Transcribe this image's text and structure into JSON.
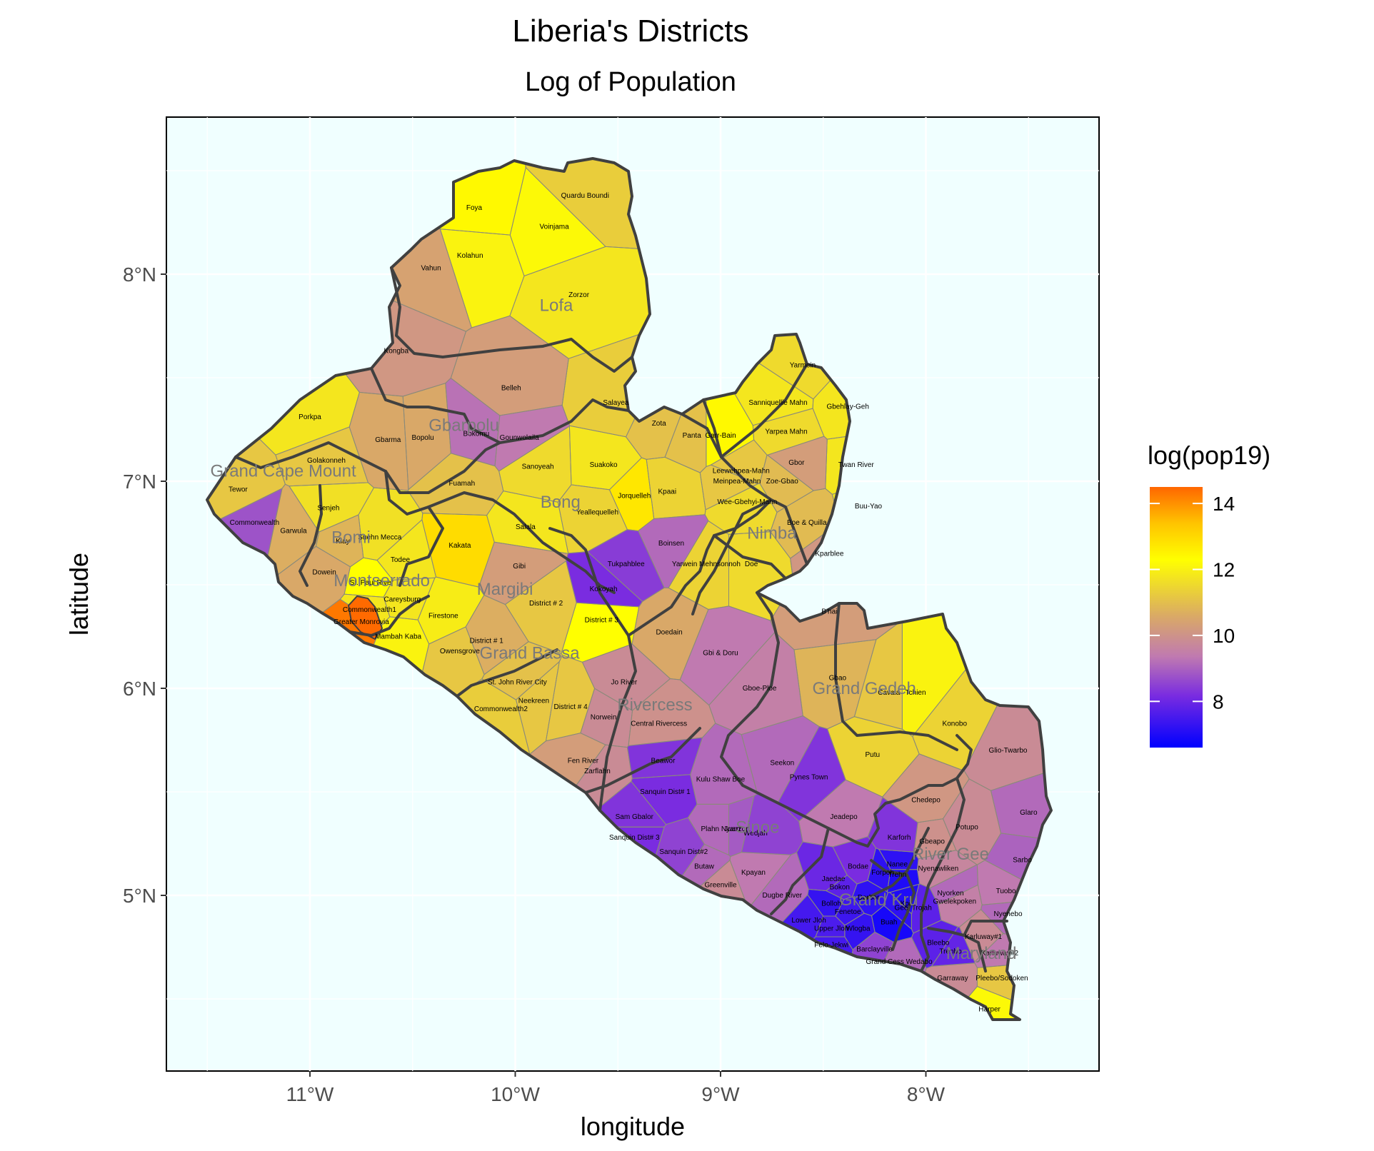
{
  "title": "Liberia's Districts",
  "subtitle": "Log of Population",
  "x_axis": {
    "label": "longitude",
    "ticks": [
      "11°W",
      "10°W",
      "9°W",
      "8°W"
    ],
    "tick_values": [
      -11,
      -10,
      -9,
      -8
    ]
  },
  "y_axis": {
    "label": "latitude",
    "ticks": [
      "8°N",
      "7°N",
      "6°N",
      "5°N"
    ],
    "tick_values": [
      8,
      7,
      6,
      5
    ]
  },
  "legend": {
    "title": "log(pop19)",
    "ticks": [
      "14",
      "12",
      "10",
      "8"
    ],
    "tick_values": [
      14,
      12,
      10,
      8
    ],
    "range": [
      6.6,
      14.5
    ],
    "colors": {
      "low": "#0000ff",
      "mid_low": "#a040d0",
      "mid": "#d9a868",
      "mid_high": "#ffff00",
      "high": "#ff6600"
    }
  },
  "colors": {
    "panel_background": "#f0ffff",
    "grid": "#ffffff",
    "county_border": "#404040",
    "district_border": "#7a7a7a",
    "greater_monrovia": "#ff6a00"
  },
  "chart_data": {
    "type": "choropleth",
    "region": "Liberia",
    "xlim": [
      -11.7,
      -7.2
    ],
    "ylim": [
      4.25,
      8.75
    ],
    "grid": true,
    "legend_position": "right",
    "counties": [
      {
        "name": "Lofa",
        "lon": -9.8,
        "lat": 7.85
      },
      {
        "name": "Gbarpolu",
        "lon": -10.25,
        "lat": 7.27
      },
      {
        "name": "Grand Cape Mount",
        "lon": -11.13,
        "lat": 7.05
      },
      {
        "name": "Bong",
        "lon": -9.78,
        "lat": 6.9
      },
      {
        "name": "Bomi",
        "lon": -10.8,
        "lat": 6.73
      },
      {
        "name": "Montserrado",
        "lon": -10.65,
        "lat": 6.52
      },
      {
        "name": "Margibi",
        "lon": -10.05,
        "lat": 6.48
      },
      {
        "name": "Nimba",
        "lon": -8.75,
        "lat": 6.75
      },
      {
        "name": "Grand Bassa",
        "lon": -9.93,
        "lat": 6.17
      },
      {
        "name": "Rivercess",
        "lon": -9.32,
        "lat": 5.92
      },
      {
        "name": "Grand Gedeh",
        "lon": -8.3,
        "lat": 6.0
      },
      {
        "name": "Sinoe",
        "lon": -8.82,
        "lat": 5.33
      },
      {
        "name": "River Gee",
        "lon": -7.88,
        "lat": 5.2
      },
      {
        "name": "Grand Kru",
        "lon": -8.23,
        "lat": 4.98
      },
      {
        "name": "Maryland",
        "lon": -7.73,
        "lat": 4.72
      }
    ],
    "districts": [
      {
        "name": "Foya",
        "lon": -10.2,
        "lat": 8.32,
        "value": 11.5
      },
      {
        "name": "Quardu Boundi",
        "lon": -9.66,
        "lat": 8.38,
        "value": 10.6
      },
      {
        "name": "Voinjama",
        "lon": -9.81,
        "lat": 8.23,
        "value": 11.3
      },
      {
        "name": "Kolahun",
        "lon": -10.22,
        "lat": 8.09,
        "value": 11.2
      },
      {
        "name": "Vahun",
        "lon": -10.41,
        "lat": 8.03,
        "value": 9.9
      },
      {
        "name": "Zorzor",
        "lon": -9.69,
        "lat": 7.9,
        "value": 11.0
      },
      {
        "name": "Kongba",
        "lon": -10.58,
        "lat": 7.63,
        "value": 9.7
      },
      {
        "name": "Belleh",
        "lon": -10.02,
        "lat": 7.45,
        "value": 9.8
      },
      {
        "name": "Salayea",
        "lon": -9.51,
        "lat": 7.38,
        "value": 10.6
      },
      {
        "name": "Porkpa",
        "lon": -11.0,
        "lat": 7.31,
        "value": 11.0
      },
      {
        "name": "Golakonneh",
        "lon": -10.92,
        "lat": 7.1,
        "value": 10.5
      },
      {
        "name": "Gbarma",
        "lon": -10.62,
        "lat": 7.2,
        "value": 10.0
      },
      {
        "name": "Bopolu",
        "lon": -10.45,
        "lat": 7.21,
        "value": 10.0
      },
      {
        "name": "Bokomu",
        "lon": -10.19,
        "lat": 7.23,
        "value": 9.1
      },
      {
        "name": "Gounwolaila",
        "lon": -9.98,
        "lat": 7.21,
        "value": 9.2
      },
      {
        "name": "Zota",
        "lon": -9.3,
        "lat": 7.28,
        "value": 10.4
      },
      {
        "name": "Panta",
        "lon": -9.14,
        "lat": 7.22,
        "value": 10.4
      },
      {
        "name": "Tewor",
        "lon": -11.35,
        "lat": 6.96,
        "value": 10.5
      },
      {
        "name": "Fuamah",
        "lon": -10.26,
        "lat": 6.99,
        "value": 10.4
      },
      {
        "name": "Sanoyeah",
        "lon": -9.89,
        "lat": 7.07,
        "value": 10.8
      },
      {
        "name": "Suakoko",
        "lon": -9.57,
        "lat": 7.08,
        "value": 11.0
      },
      {
        "name": "Jorquelleh",
        "lon": -9.42,
        "lat": 6.93,
        "value": 11.8
      },
      {
        "name": "Kpaai",
        "lon": -9.26,
        "lat": 6.95,
        "value": 10.7
      },
      {
        "name": "Senjeh",
        "lon": -10.91,
        "lat": 6.87,
        "value": 10.9
      },
      {
        "name": "Commonwealth",
        "lon": -11.27,
        "lat": 6.8,
        "value": 8.7
      },
      {
        "name": "Garwula",
        "lon": -11.08,
        "lat": 6.76,
        "value": 10.1
      },
      {
        "name": "Suehn Mecca",
        "lon": -10.66,
        "lat": 6.73,
        "value": 10.9
      },
      {
        "name": "Klay",
        "lon": -10.84,
        "lat": 6.71,
        "value": 10.2
      },
      {
        "name": "Yeallequelleh",
        "lon": -9.6,
        "lat": 6.85,
        "value": 10.7
      },
      {
        "name": "Salala",
        "lon": -9.95,
        "lat": 6.78,
        "value": 11.0
      },
      {
        "name": "Kakata",
        "lon": -10.27,
        "lat": 6.69,
        "value": 12.0
      },
      {
        "name": "Boinsen",
        "lon": -9.24,
        "lat": 6.7,
        "value": 9.0
      },
      {
        "name": "Todee",
        "lon": -10.56,
        "lat": 6.62,
        "value": 11.0
      },
      {
        "name": "Gibi",
        "lon": -9.98,
        "lat": 6.59,
        "value": 9.8
      },
      {
        "name": "Tukpahblee",
        "lon": -9.46,
        "lat": 6.6,
        "value": 8.4
      },
      {
        "name": "Dowein",
        "lon": -10.93,
        "lat": 6.56,
        "value": 10.0
      },
      {
        "name": "St. Paul River",
        "lon": -10.7,
        "lat": 6.51,
        "value": 11.4
      },
      {
        "name": "Careysburg",
        "lon": -10.55,
        "lat": 6.43,
        "value": 11.0
      },
      {
        "name": "Commonwealth1",
        "lon": -10.71,
        "lat": 6.38,
        "value": 11.0
      },
      {
        "name": "Kokoyah",
        "lon": -9.57,
        "lat": 6.48,
        "value": 8.2
      },
      {
        "name": "District # 2",
        "lon": -9.85,
        "lat": 6.41,
        "value": 10.5
      },
      {
        "name": "Firestone",
        "lon": -10.35,
        "lat": 6.35,
        "value": 11.1
      },
      {
        "name": "Greater Monrovia",
        "lon": -10.75,
        "lat": 6.32,
        "value": 14.1
      },
      {
        "name": "Mambah Kaba",
        "lon": -10.57,
        "lat": 6.25,
        "value": 11.2
      },
      {
        "name": "District # 3",
        "lon": -9.58,
        "lat": 6.33,
        "value": 11.4
      },
      {
        "name": "Doedain",
        "lon": -9.25,
        "lat": 6.27,
        "value": 10.0
      },
      {
        "name": "District # 1",
        "lon": -10.14,
        "lat": 6.23,
        "value": 10.1
      },
      {
        "name": "Owensgrove",
        "lon": -10.27,
        "lat": 6.18,
        "value": 10.5
      },
      {
        "name": "St. John River City",
        "lon": -9.99,
        "lat": 6.03,
        "value": 10.4
      },
      {
        "name": "Jo River",
        "lon": -9.47,
        "lat": 6.03,
        "value": 9.5
      },
      {
        "name": "Neekreen",
        "lon": -9.91,
        "lat": 5.94,
        "value": 10.5
      },
      {
        "name": "Commonwealth2",
        "lon": -10.07,
        "lat": 5.9,
        "value": 10.6
      },
      {
        "name": "District # 4",
        "lon": -9.73,
        "lat": 5.91,
        "value": 10.5
      },
      {
        "name": "Norwein",
        "lon": -9.57,
        "lat": 5.86,
        "value": 9.5
      },
      {
        "name": "Central Rivercess",
        "lon": -9.3,
        "lat": 5.83,
        "value": 9.6
      },
      {
        "name": "Fen River",
        "lon": -9.67,
        "lat": 5.65,
        "value": 9.8
      },
      {
        "name": "Zarflahn",
        "lon": -9.6,
        "lat": 5.6,
        "value": 9.5
      },
      {
        "name": "Beawor",
        "lon": -9.28,
        "lat": 5.65,
        "value": 8.3
      },
      {
        "name": "Sanquin Dist# 1",
        "lon": -9.27,
        "lat": 5.5,
        "value": 8.2
      },
      {
        "name": "Sam Gbalor",
        "lon": -9.42,
        "lat": 5.38,
        "value": 8.3
      },
      {
        "name": "Sanquin Dist# 3",
        "lon": -9.42,
        "lat": 5.28,
        "value": 8.2
      },
      {
        "name": "Sanquin Dist#2",
        "lon": -9.18,
        "lat": 5.21,
        "value": 8.5
      },
      {
        "name": "Butaw",
        "lon": -9.08,
        "lat": 5.14,
        "value": 9.0
      },
      {
        "name": "Greenville",
        "lon": -9.0,
        "lat": 5.05,
        "value": 9.5
      },
      {
        "name": "Kulu Shaw Boe",
        "lon": -9.0,
        "lat": 5.56,
        "value": 9.0
      },
      {
        "name": "Seekon",
        "lon": -8.7,
        "lat": 5.64,
        "value": 9.0
      },
      {
        "name": "Pynes Town",
        "lon": -8.57,
        "lat": 5.57,
        "value": 8.3
      },
      {
        "name": "Plahn Nyarn",
        "lon": -9.0,
        "lat": 5.32,
        "value": 9.0
      },
      {
        "name": "Juarzon",
        "lon": -8.92,
        "lat": 5.32,
        "value": 8.8
      },
      {
        "name": "Wedjah",
        "lon": -8.83,
        "lat": 5.3,
        "value": 8.5
      },
      {
        "name": "Jeadepo",
        "lon": -8.4,
        "lat": 5.38,
        "value": 9.2
      },
      {
        "name": "Kpayan",
        "lon": -8.84,
        "lat": 5.11,
        "value": 9.2
      },
      {
        "name": "Dugbe River",
        "lon": -8.7,
        "lat": 5.0,
        "value": 9.0
      },
      {
        "name": "Yarmein",
        "lon": -8.6,
        "lat": 7.56,
        "value": 10.8
      },
      {
        "name": "Sanniquellie Mahn",
        "lon": -8.72,
        "lat": 7.38,
        "value": 11.0
      },
      {
        "name": "Gbehlay-Geh",
        "lon": -8.38,
        "lat": 7.36,
        "value": 11.0
      },
      {
        "name": "Garr-Bain",
        "lon": -9.0,
        "lat": 7.22,
        "value": 11.5
      },
      {
        "name": "Yarpea Mahn",
        "lon": -8.68,
        "lat": 7.24,
        "value": 10.8
      },
      {
        "name": "Twan River",
        "lon": -8.34,
        "lat": 7.08,
        "value": 11.0
      },
      {
        "name": "Gbor",
        "lon": -8.63,
        "lat": 7.09,
        "value": 9.8
      },
      {
        "name": "Leewehpea-Mahn",
        "lon": -8.9,
        "lat": 7.05,
        "value": 10.5
      },
      {
        "name": "Meinpea-Mahn",
        "lon": -8.92,
        "lat": 7.0,
        "value": 10.5
      },
      {
        "name": "Zoe-Gbao",
        "lon": -8.7,
        "lat": 7.0,
        "value": 10.3
      },
      {
        "name": "Wee-Gbehyi-Mahn",
        "lon": -8.87,
        "lat": 6.9,
        "value": 10.8
      },
      {
        "name": "Buu-Yao",
        "lon": -8.28,
        "lat": 6.88,
        "value": 11.0
      },
      {
        "name": "Boe & Quilla",
        "lon": -8.58,
        "lat": 6.8,
        "value": 10.3
      },
      {
        "name": "Kparblee",
        "lon": -8.47,
        "lat": 6.65,
        "value": 9.7
      },
      {
        "name": "Yarwein Mehnsonnoh",
        "lon": -9.07,
        "lat": 6.6,
        "value": 10.7
      },
      {
        "name": "Doe",
        "lon": -8.85,
        "lat": 6.6,
        "value": 10.8
      },
      {
        "name": "B'hai",
        "lon": -8.47,
        "lat": 6.37,
        "value": 9.8
      },
      {
        "name": "Gbi & Doru",
        "lon": -9.0,
        "lat": 6.17,
        "value": 9.2
      },
      {
        "name": "Gbao",
        "lon": -8.43,
        "lat": 6.05,
        "value": 10.2
      },
      {
        "name": "Gboe-Ploe",
        "lon": -8.81,
        "lat": 6.0,
        "value": 9.3
      },
      {
        "name": "Cavala",
        "lon": -8.18,
        "lat": 5.98,
        "value": 10.5
      },
      {
        "name": "Tchien",
        "lon": -8.05,
        "lat": 5.98,
        "value": 11.2
      },
      {
        "name": "Konobo",
        "lon": -7.86,
        "lat": 5.83,
        "value": 10.7
      },
      {
        "name": "Putu",
        "lon": -8.26,
        "lat": 5.68,
        "value": 10.7
      },
      {
        "name": "Glio-Twarbo",
        "lon": -7.6,
        "lat": 5.7,
        "value": 9.5
      },
      {
        "name": "Chedepo",
        "lon": -8.0,
        "lat": 5.46,
        "value": 9.7
      },
      {
        "name": "Glaro",
        "lon": -7.5,
        "lat": 5.4,
        "value": 9.0
      },
      {
        "name": "Potupo",
        "lon": -7.8,
        "lat": 5.33,
        "value": 9.5
      },
      {
        "name": "Karforh",
        "lon": -8.13,
        "lat": 5.28,
        "value": 8.3
      },
      {
        "name": "Gbeapo",
        "lon": -7.97,
        "lat": 5.26,
        "value": 9.6
      },
      {
        "name": "Sarbo",
        "lon": -7.53,
        "lat": 5.17,
        "value": 8.9
      },
      {
        "name": "Nanee",
        "lon": -8.14,
        "lat": 5.15,
        "value": 7.2
      },
      {
        "name": "Nyenawliken",
        "lon": -7.94,
        "lat": 5.13,
        "value": 9.4
      },
      {
        "name": "Bodae",
        "lon": -8.33,
        "lat": 5.14,
        "value": 8.2
      },
      {
        "name": "Forpoh",
        "lon": -8.21,
        "lat": 5.11,
        "value": 7.2
      },
      {
        "name": "Trehn",
        "lon": -8.14,
        "lat": 5.1,
        "value": 7.0
      },
      {
        "name": "Jaedae",
        "lon": -8.45,
        "lat": 5.08,
        "value": 8.0
      },
      {
        "name": "Bokon",
        "lon": -8.42,
        "lat": 5.04,
        "value": 7.8
      },
      {
        "name": "Tuobo",
        "lon": -7.61,
        "lat": 5.02,
        "value": 9.2
      },
      {
        "name": "Nyorken",
        "lon": -7.88,
        "lat": 5.01,
        "value": 9.0
      },
      {
        "name": "Dorbor",
        "lon": -8.28,
        "lat": 4.99,
        "value": 7.2
      },
      {
        "name": "Gwelekpoken",
        "lon": -7.86,
        "lat": 4.97,
        "value": 9.3
      },
      {
        "name": "Bolloh",
        "lon": -8.46,
        "lat": 4.96,
        "value": 7.3
      },
      {
        "name": "Kpi",
        "lon": -8.1,
        "lat": 4.96,
        "value": 7.0
      },
      {
        "name": "Gee",
        "lon": -8.12,
        "lat": 4.94,
        "value": 7.2
      },
      {
        "name": "Trojah",
        "lon": -8.02,
        "lat": 4.94,
        "value": 7.8
      },
      {
        "name": "Fenetoe",
        "lon": -8.38,
        "lat": 4.92,
        "value": 7.4
      },
      {
        "name": "Nyenebo",
        "lon": -7.6,
        "lat": 4.91,
        "value": 9.0
      },
      {
        "name": "Lower Jloh",
        "lon": -8.57,
        "lat": 4.88,
        "value": 7.5
      },
      {
        "name": "Upper Jloh",
        "lon": -8.46,
        "lat": 4.84,
        "value": 7.6
      },
      {
        "name": "Wlogba",
        "lon": -8.33,
        "lat": 4.84,
        "value": 7.3
      },
      {
        "name": "Buah",
        "lon": -8.18,
        "lat": 4.87,
        "value": 6.9
      },
      {
        "name": "Felo-Jekwi",
        "lon": -8.46,
        "lat": 4.76,
        "value": 7.5
      },
      {
        "name": "Karluway#1",
        "lon": -7.72,
        "lat": 4.8,
        "value": 9.5
      },
      {
        "name": "Bleebo",
        "lon": -7.94,
        "lat": 4.77,
        "value": 7.8
      },
      {
        "name": "Barclayville",
        "lon": -8.25,
        "lat": 4.74,
        "value": 8.5
      },
      {
        "name": "Trenbo",
        "lon": -7.88,
        "lat": 4.73,
        "value": 7.9
      },
      {
        "name": "Karluway#2",
        "lon": -7.64,
        "lat": 4.72,
        "value": 9.2
      },
      {
        "name": "Grand Cess Wedabo",
        "lon": -8.13,
        "lat": 4.68,
        "value": 9.0
      },
      {
        "name": "Garraway",
        "lon": -7.87,
        "lat": 4.6,
        "value": 9.5
      },
      {
        "name": "Pleebo/Sodoken",
        "lon": -7.63,
        "lat": 4.6,
        "value": 10.5
      },
      {
        "name": "Harper",
        "lon": -7.69,
        "lat": 4.45,
        "value": 11.3
      }
    ]
  }
}
